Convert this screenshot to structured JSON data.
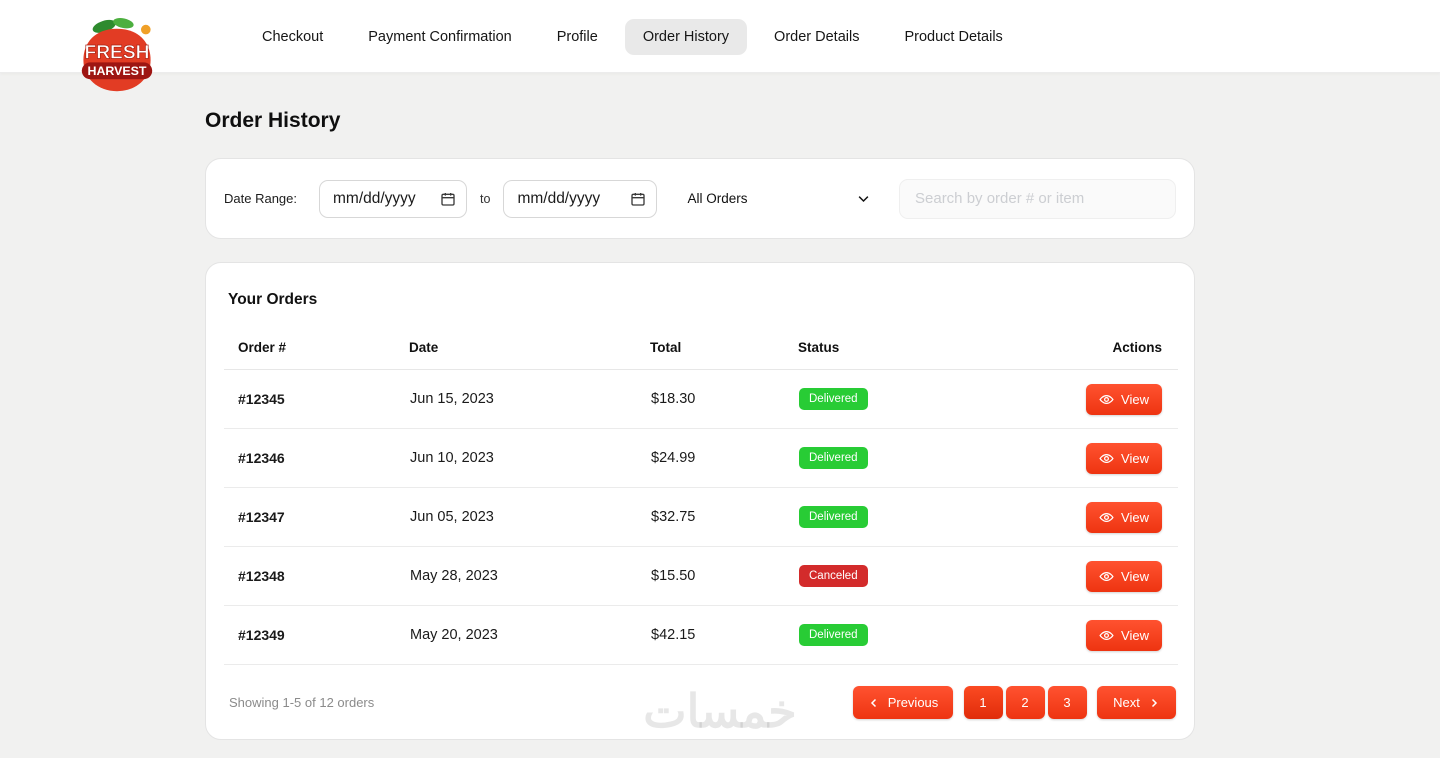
{
  "colors": {
    "accent": "#ff5230",
    "accent_dark": "#ee3411",
    "delivered": "#28cc35",
    "canceled": "#d32b2b",
    "nav_active_bg": "#e9e9e9"
  },
  "nav": {
    "logo": {
      "line1": "FRESH",
      "line2": "HARVEST"
    },
    "items": [
      {
        "label": "Checkout",
        "active": false
      },
      {
        "label": "Payment Confirmation",
        "active": false
      },
      {
        "label": "Profile",
        "active": false
      },
      {
        "label": "Order History",
        "active": true
      },
      {
        "label": "Order Details",
        "active": false
      },
      {
        "label": "Product Details",
        "active": false
      }
    ]
  },
  "page": {
    "title": "Order History"
  },
  "filters": {
    "date_range_label": "Date Range:",
    "date_from_value": "mm/dd/yyyy",
    "to_label": "to",
    "date_to_value": "mm/dd/yyyy",
    "status_filter_value": "All Orders",
    "search_placeholder": "Search by order # or item"
  },
  "orders": {
    "title": "Your Orders",
    "columns": [
      "Order #",
      "Date",
      "Total",
      "Status",
      "Actions"
    ],
    "view_label": "View",
    "rows": [
      {
        "order_number": "#12345",
        "date": "Jun 15, 2023",
        "total": "$18.30",
        "status": "Delivered",
        "status_key": "delivered"
      },
      {
        "order_number": "#12346",
        "date": "Jun 10, 2023",
        "total": "$24.99",
        "status": "Delivered",
        "status_key": "delivered"
      },
      {
        "order_number": "#12347",
        "date": "Jun 05, 2023",
        "total": "$32.75",
        "status": "Delivered",
        "status_key": "delivered"
      },
      {
        "order_number": "#12348",
        "date": "May 28, 2023",
        "total": "$15.50",
        "status": "Canceled",
        "status_key": "canceled"
      },
      {
        "order_number": "#12349",
        "date": "May 20, 2023",
        "total": "$42.15",
        "status": "Delivered",
        "status_key": "delivered"
      }
    ],
    "footer": {
      "showing_text": "Showing 1-5 of 12 orders",
      "previous_label": "Previous",
      "next_label": "Next",
      "pages": [
        "1",
        "2",
        "3"
      ],
      "active_page": "1"
    }
  },
  "watermark": "خمسات"
}
